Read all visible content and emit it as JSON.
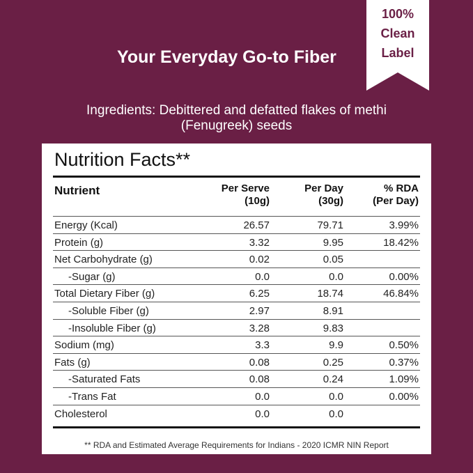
{
  "headline": "Your Everyday Go-to Fiber",
  "badge": [
    "100%",
    "Clean",
    "Label"
  ],
  "ingredients": {
    "line1": "Ingredients:  Debittered and defatted flakes of methi",
    "line2": "(Fenugreek) seeds"
  },
  "nutrition": {
    "title": "Nutrition Facts**",
    "headers": {
      "nutrient": "Nutrient",
      "per_serve_1": "Per Serve",
      "per_serve_2": "(10g)",
      "per_day_1": "Per Day",
      "per_day_2": "(30g)",
      "rda_1": "% RDA",
      "rda_2": "(Per Day)"
    },
    "rows": [
      {
        "name": "Energy (Kcal)",
        "serve": "26.57",
        "day": "79.71",
        "rda": "3.99%"
      },
      {
        "name": "Protein (g)",
        "serve": "3.32",
        "day": "9.95",
        "rda": "18.42%"
      },
      {
        "name": "Net Carbohydrate  (g)",
        "serve": "0.02",
        "day": "0.05",
        "rda": ""
      },
      {
        "name": "-Sugar (g)",
        "serve": "0.0",
        "day": "0.0",
        "rda": "0.00%"
      },
      {
        "name": "Total Dietary Fiber (g)",
        "serve": "6.25",
        "day": "18.74",
        "rda": "46.84%"
      },
      {
        "name": "-Soluble Fiber (g)",
        "serve": "2.97",
        "day": "8.91",
        "rda": ""
      },
      {
        "name": "-Insoluble Fiber (g)",
        "serve": "3.28",
        "day": "9.83",
        "rda": ""
      },
      {
        "name": "Sodium (mg)",
        "serve": "3.3",
        "day": "9.9",
        "rda": "0.50%"
      },
      {
        "name": "Fats (g)",
        "serve": "0.08",
        "day": "0.25",
        "rda": "0.37%"
      },
      {
        "name": "-Saturated Fats",
        "serve": "0.08",
        "day": "0.24",
        "rda": "1.09%"
      },
      {
        "name": "-Trans Fat",
        "serve": "0.0",
        "day": "0.0",
        "rda": "0.00%"
      },
      {
        "name": "Cholesterol",
        "serve": "0.0",
        "day": "0.0",
        "rda": ""
      }
    ],
    "footnote": "** RDA and Estimated Average Requirements for Indians - 2020 ICMR NIN Report"
  }
}
